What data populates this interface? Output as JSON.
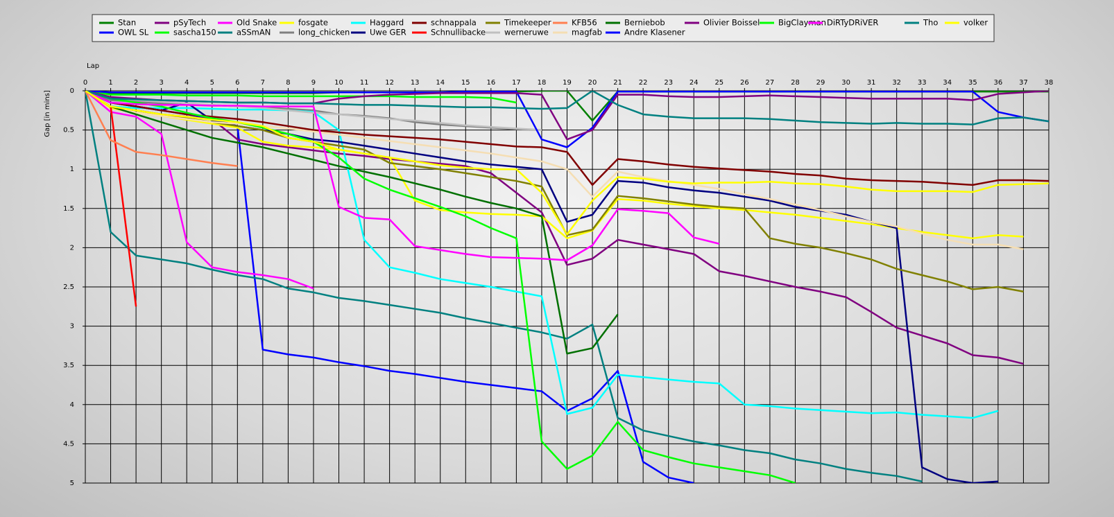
{
  "chart_data": {
    "type": "line",
    "x_label": "Lap",
    "y_label": "Gap [in mins]",
    "x": [
      0,
      1,
      2,
      3,
      4,
      5,
      6,
      7,
      8,
      9,
      10,
      11,
      12,
      13,
      14,
      15,
      16,
      17,
      18,
      19,
      20,
      21,
      22,
      23,
      24,
      25,
      26,
      27,
      28,
      29,
      30,
      31,
      32,
      33,
      34,
      35,
      36,
      37,
      38
    ],
    "xlim": [
      0,
      38
    ],
    "xticks": [
      0,
      1,
      2,
      3,
      4,
      5,
      6,
      7,
      8,
      9,
      10,
      11,
      12,
      13,
      14,
      15,
      16,
      17,
      18,
      19,
      20,
      21,
      22,
      23,
      24,
      25,
      26,
      27,
      28,
      29,
      30,
      31,
      32,
      33,
      34,
      35,
      36,
      37,
      38
    ],
    "ylim": [
      0,
      5
    ],
    "yticks": [
      0,
      0.5,
      1,
      1.5,
      2,
      2.5,
      3,
      3.5,
      4,
      4.5,
      5
    ],
    "invert_y": true,
    "x_axis_position": "top",
    "grid": true,
    "legend_position": "top",
    "series": [
      {
        "name": "Stan",
        "color": "#008000",
        "values": [
          0,
          0.03,
          0.03,
          0.03,
          0.03,
          0.03,
          0.03,
          0.03,
          0.03,
          0.03,
          0.02,
          0.02,
          0.02,
          0.02,
          0.02,
          0.02,
          0.02,
          0.01,
          0,
          0,
          0.38,
          0.01,
          0.01,
          0.01,
          0.01,
          0.01,
          0.01,
          0.01,
          0.01,
          0.01,
          0.01,
          0.01,
          0.01,
          0.01,
          0.01,
          0.01,
          0.01,
          0.01,
          0.01
        ]
      },
      {
        "name": "OWL SL",
        "color": "#0000ff",
        "values": [
          0,
          0.15,
          0.2,
          0.25,
          0.3,
          0.35,
          0.45,
          3.3,
          3.36,
          3.4,
          3.46,
          3.51,
          3.57,
          3.61,
          3.66,
          3.71,
          3.75,
          3.79,
          3.83,
          4.08,
          3.92,
          3.57,
          4.73,
          4.93,
          5.0,
          null,
          null,
          null,
          null,
          null,
          null,
          null,
          null,
          null,
          null,
          null,
          null,
          null,
          null
        ]
      },
      {
        "name": "pSyTech",
        "color": "#800080",
        "values": [
          0,
          0.2,
          0.25,
          0.3,
          0.33,
          0.36,
          0.62,
          0.68,
          0.72,
          0.76,
          0.8,
          0.83,
          0.87,
          0.9,
          0.93,
          0.96,
          1.05,
          1.3,
          1.55,
          2.22,
          2.14,
          1.9,
          1.96,
          2.02,
          2.08,
          2.3,
          2.36,
          2.43,
          2.5,
          2.56,
          2.63,
          2.82,
          3.02,
          3.12,
          3.22,
          3.37,
          3.4,
          3.48,
          null
        ]
      },
      {
        "name": "sascha150",
        "color": "#00ff00",
        "values": [
          0,
          0.05,
          0.05,
          0.05,
          0.06,
          0.06,
          0.06,
          0.07,
          0.07,
          0.07,
          0.07,
          0.07,
          0.07,
          0.08,
          0.08,
          0.08,
          0.09,
          0.15,
          null,
          null,
          null,
          null,
          null,
          null,
          null,
          null,
          null,
          null,
          null,
          null,
          null,
          null,
          null,
          null,
          null,
          null,
          null,
          null,
          null
        ]
      },
      {
        "name": "Old Snake",
        "color": "#ff00ff",
        "values": [
          0,
          0.27,
          0.33,
          0.55,
          1.93,
          2.25,
          2.31,
          2.35,
          2.4,
          2.52,
          null,
          null,
          null,
          null,
          null,
          null,
          null,
          null,
          null,
          null,
          null,
          null,
          null,
          null,
          null,
          null,
          null,
          null,
          null,
          null,
          null,
          null,
          null,
          null,
          null,
          null,
          null,
          null,
          null
        ]
      },
      {
        "name": "aSSmAN",
        "color": "#008080",
        "values": [
          0,
          1.8,
          2.1,
          2.15,
          2.2,
          2.28,
          2.35,
          2.4,
          2.52,
          2.57,
          2.64,
          2.68,
          2.73,
          2.78,
          2.83,
          2.9,
          2.96,
          3.02,
          3.08,
          3.16,
          2.98,
          4.17,
          4.33,
          4.4,
          4.47,
          4.52,
          4.58,
          4.62,
          4.7,
          4.75,
          4.82,
          4.87,
          4.91,
          4.98,
          null,
          null,
          null,
          null,
          null
        ]
      },
      {
        "name": "fosgate",
        "color": "#ffff00",
        "values": [
          0,
          0.22,
          0.28,
          0.32,
          0.37,
          0.42,
          0.47,
          0.65,
          0.7,
          0.72,
          0.75,
          0.8,
          0.85,
          1.4,
          1.52,
          1.55,
          1.57,
          1.58,
          1.6,
          1.88,
          1.78,
          1.38,
          1.4,
          1.44,
          1.47,
          1.5,
          1.52,
          1.55,
          1.58,
          1.62,
          1.66,
          1.7,
          1.75,
          1.8,
          1.84,
          1.88,
          1.84,
          1.86,
          null
        ]
      },
      {
        "name": "long_chicken",
        "color": "#808080",
        "values": [
          0,
          0.12,
          0.14,
          0.16,
          0.17,
          0.18,
          0.2,
          0.21,
          0.23,
          0.25,
          0.3,
          0.32,
          0.35,
          0.4,
          0.43,
          0.45,
          0.47,
          0.49,
          0.5,
          null,
          null,
          null,
          null,
          null,
          null,
          null,
          null,
          null,
          null,
          null,
          null,
          null,
          null,
          null,
          null,
          null,
          null,
          null,
          null
        ]
      },
      {
        "name": "Haggard",
        "color": "#00ffff",
        "values": [
          0,
          0.2,
          0.22,
          0.22,
          0.22,
          0.23,
          0.24,
          0.24,
          0.25,
          0.27,
          0.5,
          1.9,
          2.25,
          2.32,
          2.4,
          2.45,
          2.5,
          2.56,
          2.62,
          4.12,
          4.04,
          3.62,
          3.65,
          3.68,
          3.71,
          3.73,
          4.0,
          4.02,
          4.05,
          4.07,
          4.09,
          4.11,
          4.1,
          4.13,
          4.15,
          4.17,
          4.08,
          null,
          null
        ]
      },
      {
        "name": "Uwe GER",
        "color": "#000080",
        "values": [
          0,
          0.15,
          0.2,
          0.25,
          0.15,
          0.38,
          0.45,
          0.5,
          0.55,
          0.62,
          0.65,
          0.7,
          0.75,
          0.8,
          0.85,
          0.9,
          0.94,
          0.97,
          1.0,
          1.67,
          1.58,
          1.15,
          1.17,
          1.23,
          1.27,
          1.3,
          1.35,
          1.4,
          1.48,
          1.53,
          1.58,
          1.67,
          1.75,
          4.8,
          4.95,
          5.0,
          4.98,
          null,
          null
        ]
      },
      {
        "name": "schnappala",
        "color": "#800000",
        "values": [
          0,
          0.15,
          0.2,
          0.25,
          0.3,
          0.33,
          0.36,
          0.4,
          0.45,
          0.5,
          0.53,
          0.56,
          0.58,
          0.6,
          0.62,
          0.65,
          0.68,
          0.71,
          0.72,
          0.78,
          1.2,
          0.87,
          0.9,
          0.94,
          0.97,
          0.99,
          1.01,
          1.03,
          1.06,
          1.08,
          1.12,
          1.14,
          1.15,
          1.16,
          1.18,
          1.2,
          1.14,
          1.14,
          1.15
        ]
      },
      {
        "name": "Schnullibacke",
        "color": "#ff0000",
        "values": [
          0,
          0.2,
          2.75,
          null,
          null,
          null,
          null,
          null,
          null,
          null,
          null,
          null,
          null,
          null,
          null,
          null,
          null,
          null,
          null,
          null,
          null,
          null,
          null,
          null,
          null,
          null,
          null,
          null,
          null,
          null,
          null,
          null,
          null,
          null,
          null,
          null,
          null,
          null,
          null
        ]
      },
      {
        "name": "Timekeeper",
        "color": "#808000",
        "values": [
          0,
          0.2,
          0.25,
          0.3,
          0.35,
          0.4,
          0.45,
          0.5,
          0.6,
          0.65,
          0.7,
          0.75,
          0.92,
          0.96,
          1.0,
          1.05,
          1.1,
          1.15,
          1.22,
          1.84,
          1.77,
          1.34,
          1.37,
          1.41,
          1.45,
          1.48,
          1.5,
          1.88,
          1.95,
          2.0,
          2.07,
          2.15,
          2.27,
          2.35,
          2.43,
          2.53,
          2.5,
          2.56,
          null
        ]
      },
      {
        "name": "werneruwe",
        "color": "#c0c0c0",
        "values": [
          0,
          0.1,
          0.12,
          0.14,
          0.16,
          0.18,
          0.2,
          0.22,
          0.25,
          0.28,
          0.3,
          0.33,
          0.36,
          0.38,
          0.41,
          0.44,
          0.46,
          0.48,
          0.5,
          null,
          null,
          null,
          null,
          null,
          null,
          null,
          null,
          null,
          null,
          null,
          null,
          null,
          null,
          null,
          null,
          null,
          null,
          null,
          null
        ]
      },
      {
        "name": "KFB56",
        "color": "#ff7f50",
        "values": [
          0,
          0.63,
          0.78,
          0.82,
          0.87,
          0.92,
          0.96,
          null,
          null,
          null,
          null,
          null,
          null,
          null,
          null,
          null,
          null,
          null,
          null,
          null,
          null,
          null,
          null,
          null,
          null,
          null,
          null,
          null,
          null,
          null,
          null,
          null,
          null,
          null,
          null,
          null,
          null,
          null,
          null
        ]
      },
      {
        "name": "magfab",
        "color": "#f5deb3",
        "values": [
          0,
          0.2,
          0.28,
          0.32,
          0.36,
          0.4,
          0.42,
          0.45,
          0.48,
          0.52,
          0.56,
          0.6,
          0.64,
          0.68,
          0.72,
          0.76,
          0.8,
          0.85,
          0.9,
          1.0,
          1.35,
          1.03,
          1.1,
          1.15,
          1.2,
          1.25,
          1.32,
          1.38,
          1.45,
          1.52,
          1.6,
          1.67,
          1.73,
          1.82,
          1.9,
          1.96,
          1.96,
          2.02,
          null
        ]
      },
      {
        "name": "Berniebob",
        "color": "#007000",
        "values": [
          0,
          0.2,
          0.3,
          0.4,
          0.5,
          0.6,
          0.66,
          0.72,
          0.8,
          0.88,
          0.96,
          1.03,
          1.1,
          1.18,
          1.26,
          1.35,
          1.43,
          1.5,
          1.6,
          3.35,
          3.28,
          2.85,
          null,
          null,
          null,
          null,
          null,
          null,
          null,
          null,
          null,
          null,
          null,
          null,
          null,
          null,
          null,
          null,
          null
        ]
      },
      {
        "name": "Andre Klasener",
        "color": "#0000ff",
        "values": [
          0,
          0.02,
          0.02,
          0.02,
          0.02,
          0.02,
          0.02,
          0.02,
          0.02,
          0.02,
          0.02,
          0.02,
          0.02,
          0.02,
          0.02,
          0.01,
          0.01,
          0.01,
          0.62,
          0.72,
          0.47,
          0.01,
          0.01,
          0.01,
          0.01,
          0.01,
          0.01,
          0.01,
          0.01,
          0.01,
          0.01,
          0.01,
          0.01,
          0.01,
          0.01,
          0.01,
          0.27,
          0.34,
          0.39
        ]
      },
      {
        "name": "Olivier Boissel",
        "color": "#800080",
        "values": [
          0,
          0.08,
          0.1,
          0.12,
          0.13,
          0.14,
          0.15,
          0.15,
          0.16,
          0.16,
          0.1,
          0.07,
          0.05,
          0.04,
          0.03,
          0.03,
          0.03,
          0.03,
          0.05,
          0.62,
          0.5,
          0.05,
          0.05,
          0.07,
          0.08,
          0.08,
          0.07,
          0.06,
          0.07,
          0.08,
          0.09,
          0.1,
          0.1,
          0.1,
          0.1,
          0.12,
          0.04,
          0.02,
          0
        ]
      },
      {
        "name": "BigClayman",
        "color": "#00ff00",
        "values": [
          0,
          0.1,
          0.15,
          0.2,
          0.28,
          0.35,
          0.4,
          0.47,
          0.55,
          0.65,
          0.85,
          1.12,
          1.26,
          1.37,
          1.48,
          1.6,
          1.75,
          1.88,
          4.47,
          4.82,
          4.65,
          4.22,
          4.58,
          4.67,
          4.75,
          4.8,
          4.85,
          4.9,
          5.0,
          null,
          null,
          null,
          null,
          null,
          null,
          null,
          null,
          null,
          null
        ]
      },
      {
        "name": "DiRTyDRiVER",
        "color": "#ff00ff",
        "values": [
          0,
          0.15,
          0.17,
          0.18,
          0.18,
          0.19,
          0.19,
          0.2,
          0.2,
          0.2,
          1.48,
          1.62,
          1.64,
          1.98,
          2.03,
          2.08,
          2.12,
          2.13,
          2.14,
          2.16,
          1.97,
          1.51,
          1.53,
          1.56,
          1.87,
          1.95,
          null,
          null,
          null,
          null,
          null,
          null,
          null,
          null,
          null,
          null,
          null,
          null,
          null
        ]
      },
      {
        "name": "Tho",
        "color": "#008080",
        "values": [
          0,
          0.1,
          0.11,
          0.12,
          0.13,
          0.14,
          0.15,
          0.15,
          0.16,
          0.16,
          0.17,
          0.18,
          0.18,
          0.19,
          0.2,
          0.21,
          0.21,
          0.22,
          0.23,
          0.22,
          0,
          0.18,
          0.3,
          0.33,
          0.35,
          0.35,
          0.35,
          0.36,
          0.38,
          0.4,
          0.41,
          0.42,
          0.41,
          0.42,
          0.42,
          0.43,
          0.35,
          0.34,
          0.39
        ]
      },
      {
        "name": "volker",
        "color": "#ffff00",
        "values": [
          0,
          0.2,
          0.25,
          0.3,
          0.33,
          0.37,
          0.4,
          0.45,
          0.6,
          0.65,
          0.75,
          0.8,
          0.85,
          0.9,
          0.95,
          0.98,
          1.0,
          1.0,
          1.3,
          1.83,
          1.4,
          1.1,
          1.12,
          1.16,
          1.18,
          1.17,
          1.17,
          1.16,
          1.18,
          1.19,
          1.22,
          1.26,
          1.28,
          1.28,
          1.28,
          1.29,
          1.2,
          1.19,
          1.18
        ]
      }
    ]
  }
}
